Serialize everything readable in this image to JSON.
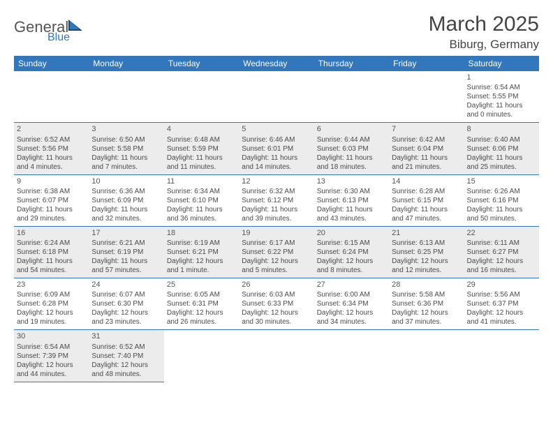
{
  "logo": {
    "part1": "General",
    "part2": "Blue"
  },
  "title": "March 2025",
  "location": "Biburg, Germany",
  "day_headers": [
    "Sunday",
    "Monday",
    "Tuesday",
    "Wednesday",
    "Thursday",
    "Friday",
    "Saturday"
  ],
  "colors": {
    "header_bg": "#3277bc",
    "header_text": "#ffffff",
    "shade_bg": "#ececec",
    "cell_border": "#3277bc",
    "body_text": "#4a4a4a",
    "logo_blue": "#3277bc",
    "logo_general": "#555555"
  },
  "weeks": [
    [
      null,
      null,
      null,
      null,
      null,
      null,
      {
        "n": "1",
        "sunrise": "Sunrise: 6:54 AM",
        "sunset": "Sunset: 5:55 PM",
        "day1": "Daylight: 11 hours",
        "day2": "and 0 minutes.",
        "shade": false
      }
    ],
    [
      {
        "n": "2",
        "sunrise": "Sunrise: 6:52 AM",
        "sunset": "Sunset: 5:56 PM",
        "day1": "Daylight: 11 hours",
        "day2": "and 4 minutes.",
        "shade": true
      },
      {
        "n": "3",
        "sunrise": "Sunrise: 6:50 AM",
        "sunset": "Sunset: 5:58 PM",
        "day1": "Daylight: 11 hours",
        "day2": "and 7 minutes.",
        "shade": true
      },
      {
        "n": "4",
        "sunrise": "Sunrise: 6:48 AM",
        "sunset": "Sunset: 5:59 PM",
        "day1": "Daylight: 11 hours",
        "day2": "and 11 minutes.",
        "shade": true
      },
      {
        "n": "5",
        "sunrise": "Sunrise: 6:46 AM",
        "sunset": "Sunset: 6:01 PM",
        "day1": "Daylight: 11 hours",
        "day2": "and 14 minutes.",
        "shade": true
      },
      {
        "n": "6",
        "sunrise": "Sunrise: 6:44 AM",
        "sunset": "Sunset: 6:03 PM",
        "day1": "Daylight: 11 hours",
        "day2": "and 18 minutes.",
        "shade": true
      },
      {
        "n": "7",
        "sunrise": "Sunrise: 6:42 AM",
        "sunset": "Sunset: 6:04 PM",
        "day1": "Daylight: 11 hours",
        "day2": "and 21 minutes.",
        "shade": true
      },
      {
        "n": "8",
        "sunrise": "Sunrise: 6:40 AM",
        "sunset": "Sunset: 6:06 PM",
        "day1": "Daylight: 11 hours",
        "day2": "and 25 minutes.",
        "shade": true
      }
    ],
    [
      {
        "n": "9",
        "sunrise": "Sunrise: 6:38 AM",
        "sunset": "Sunset: 6:07 PM",
        "day1": "Daylight: 11 hours",
        "day2": "and 29 minutes.",
        "shade": false
      },
      {
        "n": "10",
        "sunrise": "Sunrise: 6:36 AM",
        "sunset": "Sunset: 6:09 PM",
        "day1": "Daylight: 11 hours",
        "day2": "and 32 minutes.",
        "shade": false
      },
      {
        "n": "11",
        "sunrise": "Sunrise: 6:34 AM",
        "sunset": "Sunset: 6:10 PM",
        "day1": "Daylight: 11 hours",
        "day2": "and 36 minutes.",
        "shade": false
      },
      {
        "n": "12",
        "sunrise": "Sunrise: 6:32 AM",
        "sunset": "Sunset: 6:12 PM",
        "day1": "Daylight: 11 hours",
        "day2": "and 39 minutes.",
        "shade": false
      },
      {
        "n": "13",
        "sunrise": "Sunrise: 6:30 AM",
        "sunset": "Sunset: 6:13 PM",
        "day1": "Daylight: 11 hours",
        "day2": "and 43 minutes.",
        "shade": false
      },
      {
        "n": "14",
        "sunrise": "Sunrise: 6:28 AM",
        "sunset": "Sunset: 6:15 PM",
        "day1": "Daylight: 11 hours",
        "day2": "and 47 minutes.",
        "shade": false
      },
      {
        "n": "15",
        "sunrise": "Sunrise: 6:26 AM",
        "sunset": "Sunset: 6:16 PM",
        "day1": "Daylight: 11 hours",
        "day2": "and 50 minutes.",
        "shade": false
      }
    ],
    [
      {
        "n": "16",
        "sunrise": "Sunrise: 6:24 AM",
        "sunset": "Sunset: 6:18 PM",
        "day1": "Daylight: 11 hours",
        "day2": "and 54 minutes.",
        "shade": true
      },
      {
        "n": "17",
        "sunrise": "Sunrise: 6:21 AM",
        "sunset": "Sunset: 6:19 PM",
        "day1": "Daylight: 11 hours",
        "day2": "and 57 minutes.",
        "shade": true
      },
      {
        "n": "18",
        "sunrise": "Sunrise: 6:19 AM",
        "sunset": "Sunset: 6:21 PM",
        "day1": "Daylight: 12 hours",
        "day2": "and 1 minute.",
        "shade": true
      },
      {
        "n": "19",
        "sunrise": "Sunrise: 6:17 AM",
        "sunset": "Sunset: 6:22 PM",
        "day1": "Daylight: 12 hours",
        "day2": "and 5 minutes.",
        "shade": true
      },
      {
        "n": "20",
        "sunrise": "Sunrise: 6:15 AM",
        "sunset": "Sunset: 6:24 PM",
        "day1": "Daylight: 12 hours",
        "day2": "and 8 minutes.",
        "shade": true
      },
      {
        "n": "21",
        "sunrise": "Sunrise: 6:13 AM",
        "sunset": "Sunset: 6:25 PM",
        "day1": "Daylight: 12 hours",
        "day2": "and 12 minutes.",
        "shade": true
      },
      {
        "n": "22",
        "sunrise": "Sunrise: 6:11 AM",
        "sunset": "Sunset: 6:27 PM",
        "day1": "Daylight: 12 hours",
        "day2": "and 16 minutes.",
        "shade": true
      }
    ],
    [
      {
        "n": "23",
        "sunrise": "Sunrise: 6:09 AM",
        "sunset": "Sunset: 6:28 PM",
        "day1": "Daylight: 12 hours",
        "day2": "and 19 minutes.",
        "shade": false
      },
      {
        "n": "24",
        "sunrise": "Sunrise: 6:07 AM",
        "sunset": "Sunset: 6:30 PM",
        "day1": "Daylight: 12 hours",
        "day2": "and 23 minutes.",
        "shade": false
      },
      {
        "n": "25",
        "sunrise": "Sunrise: 6:05 AM",
        "sunset": "Sunset: 6:31 PM",
        "day1": "Daylight: 12 hours",
        "day2": "and 26 minutes.",
        "shade": false
      },
      {
        "n": "26",
        "sunrise": "Sunrise: 6:03 AM",
        "sunset": "Sunset: 6:33 PM",
        "day1": "Daylight: 12 hours",
        "day2": "and 30 minutes.",
        "shade": false
      },
      {
        "n": "27",
        "sunrise": "Sunrise: 6:00 AM",
        "sunset": "Sunset: 6:34 PM",
        "day1": "Daylight: 12 hours",
        "day2": "and 34 minutes.",
        "shade": false
      },
      {
        "n": "28",
        "sunrise": "Sunrise: 5:58 AM",
        "sunset": "Sunset: 6:36 PM",
        "day1": "Daylight: 12 hours",
        "day2": "and 37 minutes.",
        "shade": false
      },
      {
        "n": "29",
        "sunrise": "Sunrise: 5:56 AM",
        "sunset": "Sunset: 6:37 PM",
        "day1": "Daylight: 12 hours",
        "day2": "and 41 minutes.",
        "shade": false
      }
    ],
    [
      {
        "n": "30",
        "sunrise": "Sunrise: 6:54 AM",
        "sunset": "Sunset: 7:39 PM",
        "day1": "Daylight: 12 hours",
        "day2": "and 44 minutes.",
        "shade": true
      },
      {
        "n": "31",
        "sunrise": "Sunrise: 6:52 AM",
        "sunset": "Sunset: 7:40 PM",
        "day1": "Daylight: 12 hours",
        "day2": "and 48 minutes.",
        "shade": true
      },
      null,
      null,
      null,
      null,
      null
    ]
  ]
}
